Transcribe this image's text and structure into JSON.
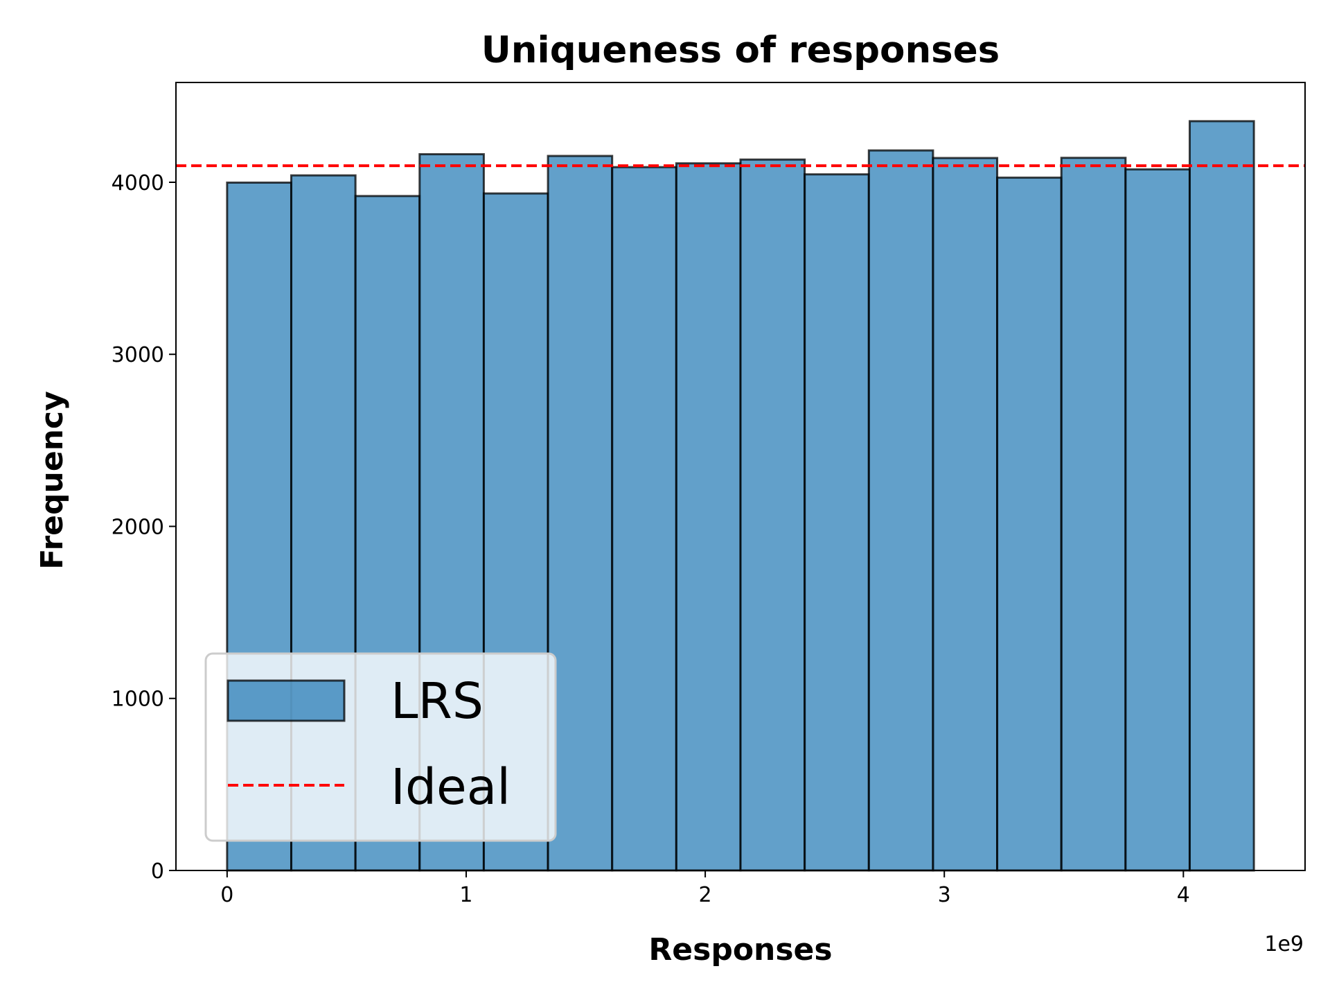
{
  "chart_data": {
    "type": "bar",
    "title": "Uniqueness of responses",
    "xlabel": "Responses",
    "ylabel": "Frequency",
    "x_offset_label": "1e9",
    "xlim": [
      -0.214,
      4.509
    ],
    "ylim": [
      0,
      4580
    ],
    "xticks": [
      0,
      1,
      2,
      3,
      4
    ],
    "yticks": [
      0,
      1000,
      2000,
      3000,
      4000
    ],
    "bin_edges": [
      0,
      0.2684,
      0.5369,
      0.8053,
      1.0737,
      1.3422,
      1.6106,
      1.879,
      2.1475,
      2.4159,
      2.6844,
      2.9528,
      3.2212,
      3.4897,
      3.7581,
      4.0265,
      4.295
    ],
    "values": [
      3998,
      4040,
      3920,
      4163,
      3935,
      4153,
      4088,
      4110,
      4132,
      4046,
      4185,
      4141,
      4027,
      4142,
      4075,
      4355
    ],
    "ideal": 4096,
    "bar_color": "#1f77b4",
    "ideal_color": "#ff0000",
    "legend": {
      "position": "lower left",
      "entries": [
        "LRS",
        "Ideal"
      ]
    }
  }
}
